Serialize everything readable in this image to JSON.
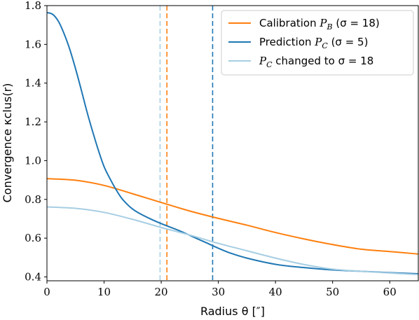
{
  "chart_data": {
    "type": "line",
    "xlabel": "Radius θ [″]",
    "ylabel": "Convergence κclus(r)",
    "xlim": [
      0,
      65
    ],
    "ylim": [
      0.38,
      1.8
    ],
    "xticks": [
      0,
      10,
      20,
      30,
      40,
      50,
      60
    ],
    "yticks": [
      0.4,
      0.6,
      0.8,
      1.0,
      1.2,
      1.4,
      1.6,
      1.8
    ],
    "xtick_labels": [
      "0",
      "10",
      "20",
      "30",
      "40",
      "50",
      "60"
    ],
    "ytick_labels": [
      "0.4",
      "0.6",
      "0.8",
      "1.0",
      "1.2",
      "1.4",
      "1.6",
      "1.8"
    ],
    "grid": false,
    "legend_position": "top-right",
    "series": [
      {
        "name": "Calibration P_B (σ = 18)",
        "color": "#ff7f0e",
        "x": [
          0,
          5,
          10,
          15,
          20,
          25,
          30,
          35,
          40,
          45,
          50,
          55,
          60,
          65
        ],
        "y": [
          0.907,
          0.899,
          0.872,
          0.829,
          0.784,
          0.74,
          0.702,
          0.667,
          0.629,
          0.596,
          0.567,
          0.543,
          0.531,
          0.518
        ]
      },
      {
        "name": "Prediction P_C (σ = 5)",
        "color": "#1f77b4",
        "x": [
          0,
          1,
          2,
          3,
          4,
          5,
          6,
          7,
          8,
          9,
          10,
          11,
          12,
          13,
          14,
          15,
          16,
          18,
          20,
          22,
          24,
          26,
          28,
          30,
          32,
          35,
          40,
          45,
          50,
          55,
          60,
          65
        ],
        "y": [
          1.764,
          1.755,
          1.719,
          1.655,
          1.574,
          1.475,
          1.366,
          1.253,
          1.15,
          1.054,
          0.969,
          0.909,
          0.855,
          0.809,
          0.776,
          0.75,
          0.731,
          0.701,
          0.675,
          0.652,
          0.628,
          0.601,
          0.575,
          0.548,
          0.524,
          0.497,
          0.465,
          0.448,
          0.436,
          0.429,
          0.422,
          0.416
        ]
      },
      {
        "name": "P_C changed to σ = 18",
        "color": "#a6cee3",
        "x": [
          0,
          5,
          10,
          15,
          20,
          25,
          30,
          35,
          40,
          45,
          50,
          55,
          60,
          65
        ],
        "y": [
          0.761,
          0.754,
          0.733,
          0.697,
          0.655,
          0.616,
          0.573,
          0.535,
          0.497,
          0.464,
          0.44,
          0.429,
          0.42,
          0.412
        ]
      }
    ],
    "vlines": [
      {
        "x": 19.8,
        "color": "#a6cee3",
        "style": "dashed"
      },
      {
        "x": 21.0,
        "color": "#ff7f0e",
        "style": "dashed"
      },
      {
        "x": 29.0,
        "color": "#1f77b4",
        "style": "dashed"
      }
    ],
    "legend": [
      {
        "pre": "Calibration ",
        "math": "P",
        "sub": "B",
        "post": " (σ = 18)",
        "color": "#ff7f0e"
      },
      {
        "pre": "Prediction ",
        "math": "P",
        "sub": "C",
        "post": " (σ = 5)",
        "color": "#1f77b4"
      },
      {
        "pre": "",
        "math": "P",
        "sub": "C",
        "post": " changed to σ = 18",
        "color": "#a6cee3"
      }
    ]
  }
}
